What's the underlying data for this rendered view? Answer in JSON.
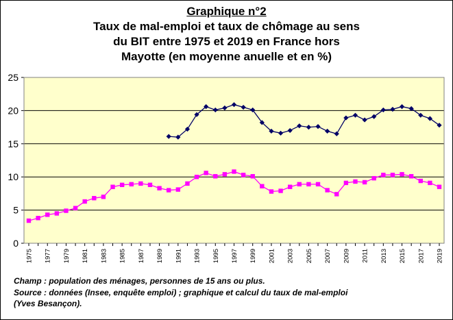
{
  "chart_data": {
    "type": "line",
    "title": "Graphique n°2",
    "subtitle_lines": [
      "Taux de mal-emploi et taux de chômage au sens",
      "du BIT entre 1975 et 2019 en France hors",
      "Mayotte (en moyenne anuelle et en %)"
    ],
    "x_tick_labels": [
      "1975",
      "1977",
      "1979",
      "1981",
      "1983",
      "1985",
      "1987",
      "1989",
      "1991",
      "1993",
      "1995",
      "1997",
      "1999",
      "2001",
      "2003",
      "2005",
      "2007",
      "2009",
      "2011",
      "2013",
      "2015",
      "2017",
      "2019"
    ],
    "y_tick_labels": [
      "0",
      "5",
      "10",
      "15",
      "20",
      "25"
    ],
    "xlim": [
      1975,
      2019
    ],
    "ylim": [
      0,
      25
    ],
    "grid": true,
    "legend": "none",
    "plot_background": "#ffffcc",
    "series": [
      {
        "color": "#000066",
        "marker": "diamond",
        "x": [
          1990,
          1991,
          1992,
          1993,
          1994,
          1995,
          1996,
          1997,
          1998,
          1999,
          2000,
          2001,
          2002,
          2003,
          2004,
          2005,
          2006,
          2007,
          2008,
          2009,
          2010,
          2011,
          2012,
          2013,
          2014,
          2015,
          2016,
          2017,
          2018,
          2019
        ],
        "values": [
          16.1,
          16.0,
          17.2,
          19.4,
          20.6,
          20.1,
          20.4,
          20.9,
          20.5,
          20.1,
          18.2,
          16.9,
          16.6,
          17.0,
          17.7,
          17.5,
          17.6,
          16.9,
          16.5,
          18.9,
          19.3,
          18.6,
          19.1,
          20.1,
          20.2,
          20.6,
          20.3,
          19.3,
          18.8,
          17.8
        ]
      },
      {
        "color": "#ff00ff",
        "marker": "square",
        "x": [
          1975,
          1976,
          1977,
          1978,
          1979,
          1980,
          1981,
          1982,
          1983,
          1984,
          1985,
          1986,
          1987,
          1988,
          1989,
          1990,
          1991,
          1992,
          1993,
          1994,
          1995,
          1996,
          1997,
          1998,
          1999,
          2000,
          2001,
          2002,
          2003,
          2004,
          2005,
          2006,
          2007,
          2008,
          2009,
          2010,
          2011,
          2012,
          2013,
          2014,
          2015,
          2016,
          2017,
          2018,
          2019
        ],
        "values": [
          3.4,
          3.8,
          4.3,
          4.5,
          4.9,
          5.3,
          6.3,
          6.8,
          7.0,
          8.5,
          8.8,
          8.9,
          9.0,
          8.8,
          8.3,
          8.0,
          8.1,
          9.0,
          10.0,
          10.6,
          10.1,
          10.4,
          10.8,
          10.3,
          10.1,
          8.6,
          7.8,
          7.9,
          8.5,
          8.9,
          8.9,
          8.9,
          8.0,
          7.4,
          9.1,
          9.3,
          9.2,
          9.8,
          10.3,
          10.3,
          10.4,
          10.1,
          9.4,
          9.1,
          8.5
        ]
      }
    ]
  },
  "notes": {
    "line1": "Champ : population des ménages, personnes de 15 ans ou plus.",
    "line2": "Source : données (Insee, enquête emploi) ; graphique et calcul du taux de mal-emploi",
    "line3": "(Yves Besançon)."
  }
}
